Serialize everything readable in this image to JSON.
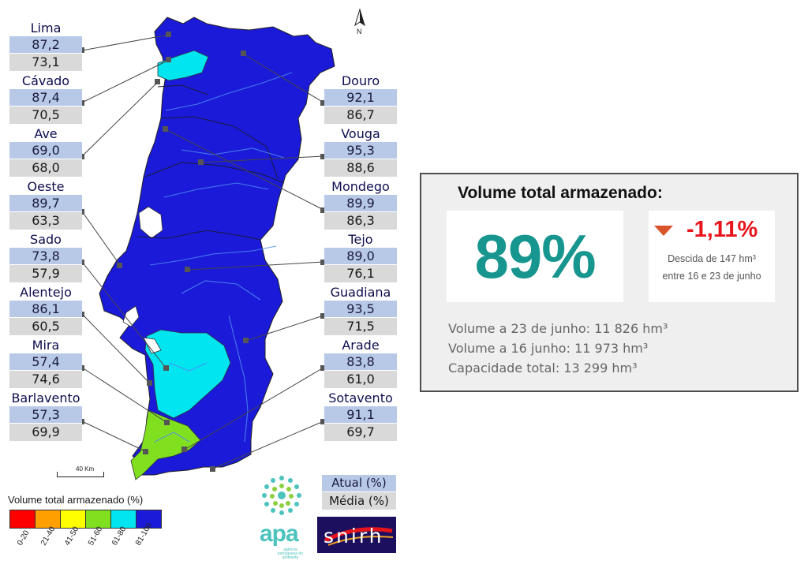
{
  "map": {
    "north_label": "N",
    "scale_bar_label": "40  Km",
    "scale_title": "Volume total armazenado (%)",
    "scale_classes": [
      {
        "label": "0-20",
        "color": "#ff0000"
      },
      {
        "label": "21-40",
        "color": "#ffa000"
      },
      {
        "label": "41-50",
        "color": "#ffff00"
      },
      {
        "label": "51-60",
        "color": "#80e020"
      },
      {
        "label": "61-80",
        "color": "#00e5f0"
      },
      {
        "label": "81-100",
        "color": "#1a1ad8"
      }
    ]
  },
  "basins": [
    {
      "name": "Lima",
      "actual": "87,2",
      "mean": "73,1",
      "class_color": "#1a1ad8"
    },
    {
      "name": "Cávado",
      "actual": "87,4",
      "mean": "70,5",
      "class_color": "#1a1ad8"
    },
    {
      "name": "Ave",
      "actual": "69,0",
      "mean": "68,0",
      "class_color": "#00e5f0"
    },
    {
      "name": "Oeste",
      "actual": "89,7",
      "mean": "63,3",
      "class_color": "#1a1ad8"
    },
    {
      "name": "Sado",
      "actual": "73,8",
      "mean": "57,9",
      "class_color": "#00e5f0"
    },
    {
      "name": "Alentejo",
      "actual": "86,1",
      "mean": "60,5",
      "class_color": "#1a1ad8"
    },
    {
      "name": "Mira",
      "actual": "57,4",
      "mean": "74,6",
      "class_color": "#80e020"
    },
    {
      "name": "Barlavento",
      "actual": "57,3",
      "mean": "69,9",
      "class_color": "#80e020"
    },
    {
      "name": "Douro",
      "actual": "92,1",
      "mean": "86,7",
      "class_color": "#1a1ad8"
    },
    {
      "name": "Vouga",
      "actual": "95,3",
      "mean": "88,6",
      "class_color": "#1a1ad8"
    },
    {
      "name": "Mondego",
      "actual": "89,9",
      "mean": "86,3",
      "class_color": "#1a1ad8"
    },
    {
      "name": "Tejo",
      "actual": "89,0",
      "mean": "76,1",
      "class_color": "#1a1ad8"
    },
    {
      "name": "Guadiana",
      "actual": "93,5",
      "mean": "71,5",
      "class_color": "#1a1ad8"
    },
    {
      "name": "Arade",
      "actual": "83,8",
      "mean": "61,0",
      "class_color": "#1a1ad8"
    },
    {
      "name": "Sotavento",
      "actual": "91,1",
      "mean": "69,7",
      "class_color": "#1a1ad8"
    }
  ],
  "legend": {
    "actual_label": "Atual (%)",
    "mean_label": "Média (%)"
  },
  "panel": {
    "title": "Volume total armazenado:",
    "total_pct": "89%",
    "change": "-1,11%",
    "change_desc_1": "Descida de 147 hm³",
    "change_desc_2": "entre 16 e 23 de junho",
    "volume_23": "Volume a 23 de junho: 11 826 hm³",
    "volume_16": "Volume a 16 junho: 11 973 hm³",
    "capacity": "Capacidade total: 13 299 hm³"
  },
  "logos": {
    "apa_text": "apa",
    "apa_subtext": "agência portuguesa do ambiente",
    "snirh_text": "snirh"
  }
}
